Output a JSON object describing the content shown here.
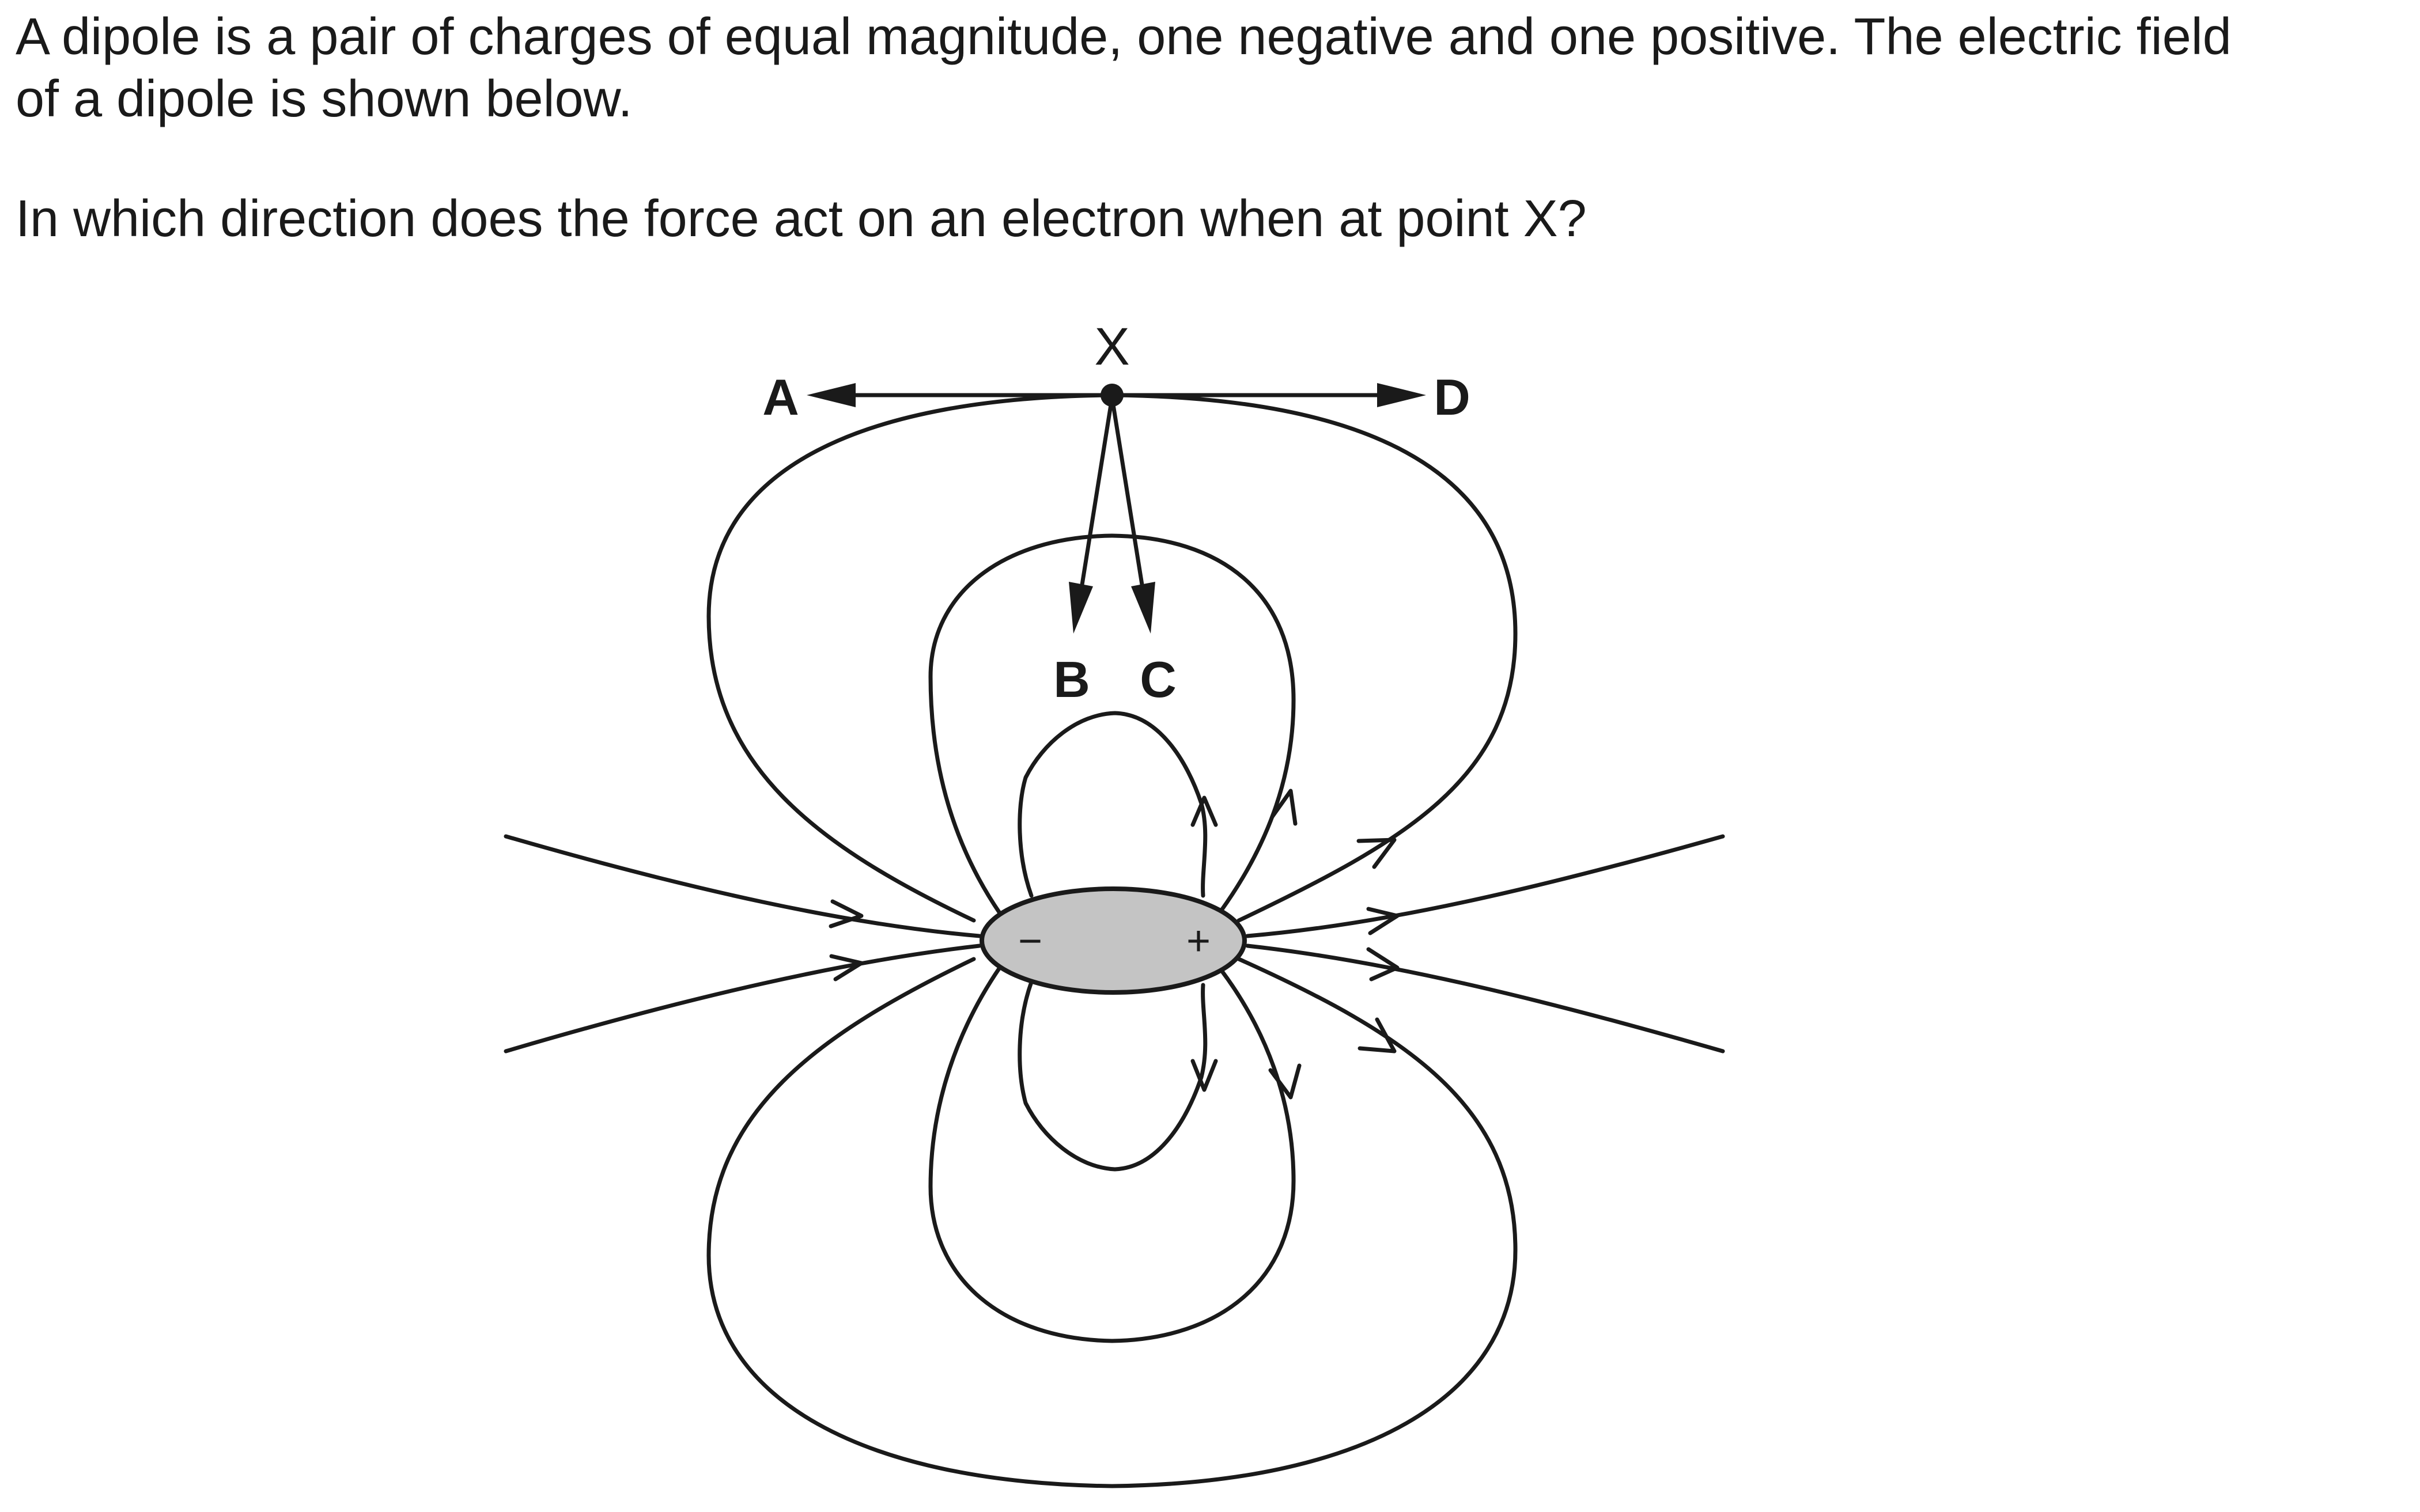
{
  "question": {
    "line1": "A dipole is a pair of charges of equal magnitude, one negative and one positive. The electric field",
    "line2": "of a dipole is shown below.",
    "line3": "In which direction does the force act on an electron when at point X?"
  },
  "diagram": {
    "point_label": "X",
    "options": [
      {
        "letter": "A",
        "direction": "left"
      },
      {
        "letter": "B",
        "direction": "down-left"
      },
      {
        "letter": "C",
        "direction": "down-right"
      },
      {
        "letter": "D",
        "direction": "right"
      }
    ],
    "negative_sign": "−",
    "positive_sign": "+",
    "colors": {
      "ink": "#1a1a1a",
      "dipole_fill": "#c4c4c4"
    }
  }
}
